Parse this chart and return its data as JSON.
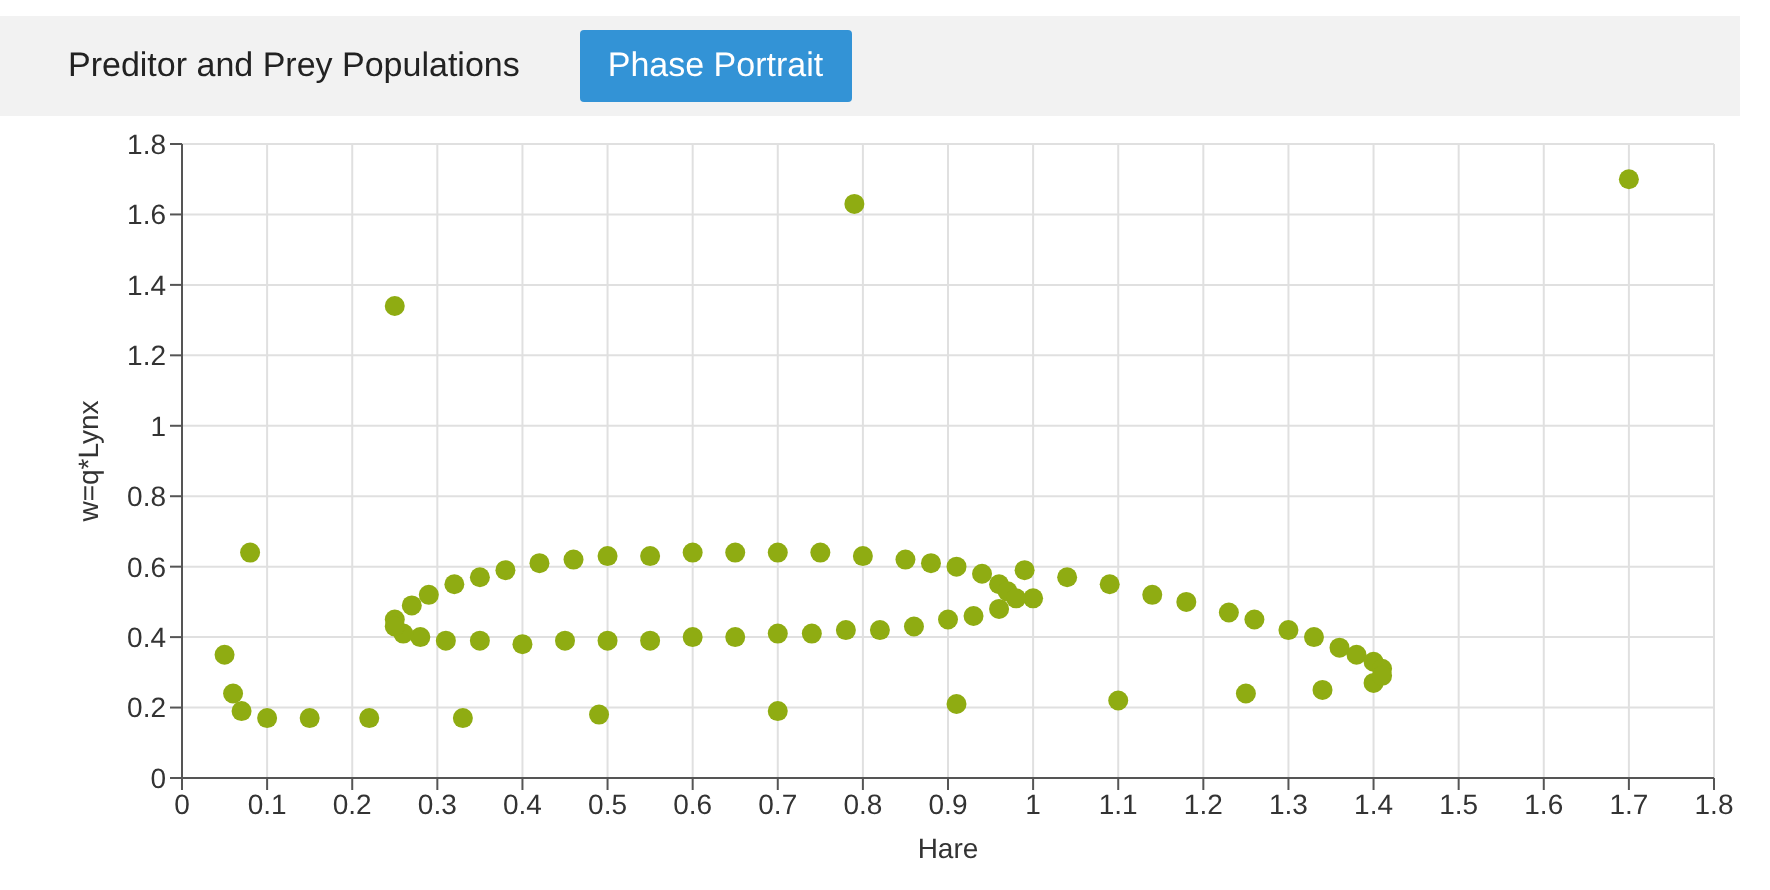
{
  "chart_data": {
    "type": "scatter",
    "annotations": [
      "Preditor and Prey Populations",
      "Phase Portrait"
    ],
    "xlabel": "Hare",
    "ylabel": "w=q*Lynx",
    "x": [
      0.25,
      0.79,
      1.7,
      0.05,
      0.06,
      0.07,
      0.08,
      0.1,
      0.15,
      0.22,
      0.33,
      0.49,
      0.7,
      0.91,
      1.1,
      1.25,
      1.34,
      1.4,
      1.04,
      1.09,
      1.14,
      1.18,
      1.23,
      1.26,
      1.3,
      1.33,
      1.36,
      1.38,
      1.4,
      1.41,
      1.41,
      0.99,
      1.0,
      0.25,
      0.27,
      0.29,
      0.32,
      0.35,
      0.38,
      0.42,
      0.46,
      0.5,
      0.55,
      0.6,
      0.65,
      0.7,
      0.75,
      0.8,
      0.85,
      0.88,
      0.91,
      0.94,
      0.96,
      0.97,
      0.98,
      0.96,
      0.93,
      0.9,
      0.86,
      0.82,
      0.78,
      0.74,
      0.7,
      0.65,
      0.6,
      0.55,
      0.5,
      0.45,
      0.4,
      0.35,
      0.31,
      0.28,
      0.26,
      0.25
    ],
    "values": [
      1.34,
      1.63,
      1.7,
      0.35,
      0.24,
      0.19,
      0.64,
      0.17,
      0.17,
      0.17,
      0.17,
      0.18,
      0.19,
      0.21,
      0.22,
      0.24,
      0.25,
      0.27,
      0.57,
      0.55,
      0.52,
      0.5,
      0.47,
      0.45,
      0.42,
      0.4,
      0.37,
      0.35,
      0.33,
      0.31,
      0.29,
      0.59,
      0.51,
      0.45,
      0.49,
      0.52,
      0.55,
      0.57,
      0.59,
      0.61,
      0.62,
      0.63,
      0.63,
      0.64,
      0.64,
      0.64,
      0.64,
      0.63,
      0.62,
      0.61,
      0.6,
      0.58,
      0.55,
      0.53,
      0.51,
      0.48,
      0.46,
      0.45,
      0.43,
      0.42,
      0.42,
      0.41,
      0.41,
      0.4,
      0.4,
      0.39,
      0.39,
      0.39,
      0.38,
      0.39,
      0.39,
      0.4,
      0.41,
      0.43
    ],
    "color": "#8fac12",
    "marker": "circle",
    "grid": true,
    "xlim": [
      0,
      1.8
    ],
    "xticks": [
      0,
      0.1,
      0.2,
      0.3,
      0.4,
      0.5,
      0.6,
      0.7,
      0.8,
      0.9,
      1,
      1.1,
      1.2,
      1.3,
      1.4,
      1.5,
      1.6,
      1.7,
      1.8
    ],
    "ylim": [
      0,
      1.8
    ],
    "yticks": [
      0,
      0.2,
      0.4,
      0.6,
      0.8,
      1,
      1.2,
      1.4,
      1.6,
      1.8
    ]
  }
}
